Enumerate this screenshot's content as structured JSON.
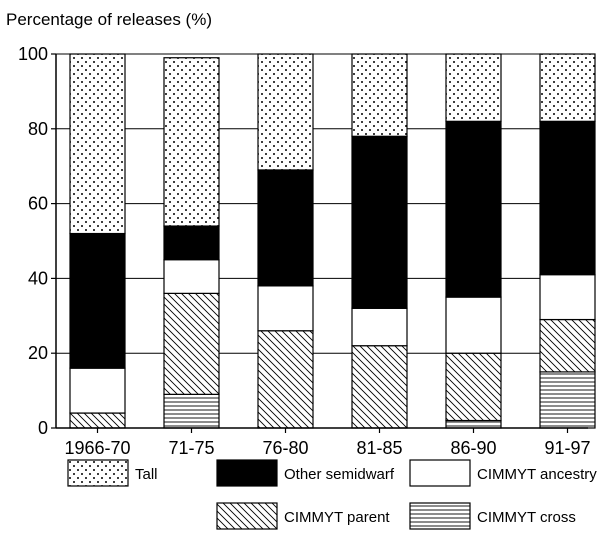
{
  "chart_data": {
    "type": "bar",
    "stacked": true,
    "ylabel": "Percentage of releases (%)",
    "ylim": [
      0,
      100
    ],
    "yticks": [
      0,
      20,
      40,
      60,
      80,
      100
    ],
    "grid": true,
    "legend_position": "bottom",
    "categories": [
      "1966-70",
      "71-75",
      "76-80",
      "81-85",
      "86-90",
      "91-97"
    ],
    "series": [
      {
        "name": "CIMMYT cross",
        "pattern": "horizontal-lines",
        "values": [
          0,
          9,
          0,
          0,
          2,
          15
        ]
      },
      {
        "name": "CIMMYT parent",
        "pattern": "diagonal-hatch",
        "values": [
          4,
          27,
          26,
          22,
          18,
          14
        ]
      },
      {
        "name": "CIMMYT ancestry",
        "pattern": "white",
        "values": [
          12,
          9,
          12,
          10,
          15,
          12
        ]
      },
      {
        "name": "Other semidwarf",
        "pattern": "black",
        "values": [
          36,
          9,
          31,
          46,
          47,
          41
        ]
      },
      {
        "name": "Tall",
        "pattern": "dots",
        "values": [
          48,
          45,
          31,
          22,
          18,
          18
        ]
      }
    ],
    "legend": [
      {
        "label": "Tall",
        "pattern": "dots"
      },
      {
        "label": "Other semidwarf",
        "pattern": "black"
      },
      {
        "label": "CIMMYT ancestry",
        "pattern": "white"
      },
      {
        "label": "CIMMYT parent",
        "pattern": "diagonal-hatch"
      },
      {
        "label": "CIMMYT cross",
        "pattern": "horizontal-lines"
      }
    ]
  }
}
